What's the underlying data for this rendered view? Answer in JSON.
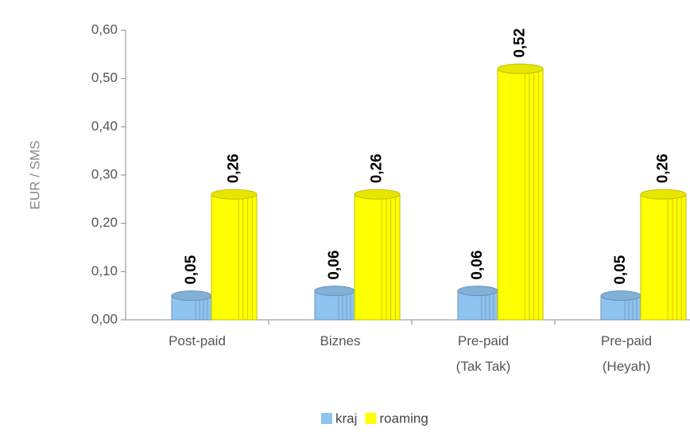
{
  "chart_data": {
    "type": "bar",
    "ylabel": "EUR / SMS",
    "categories": [
      "Post-paid",
      "Biznes",
      "Pre-paid\n(Tak Tak)",
      "Pre-paid\n(Heyah)"
    ],
    "series": [
      {
        "name": "kraj",
        "color": "#8fc3f0",
        "values": [
          0.05,
          0.06,
          0.06,
          0.05
        ],
        "value_labels": [
          "0,05",
          "0,06",
          "0,06",
          "0,05"
        ]
      },
      {
        "name": "roaming",
        "color": "#ffff00",
        "values": [
          0.26,
          0.26,
          0.52,
          0.26
        ],
        "value_labels": [
          "0,26",
          "0,26",
          "0,52",
          "0,26"
        ]
      }
    ],
    "ylim": [
      0,
      0.6
    ],
    "yticks": [
      {
        "value": 0,
        "label": "0,00"
      },
      {
        "value": 0.1,
        "label": "0,10"
      },
      {
        "value": 0.2,
        "label": "0,20"
      },
      {
        "value": 0.3,
        "label": "0,30"
      },
      {
        "value": 0.4,
        "label": "0,40"
      },
      {
        "value": 0.5,
        "label": "0,50"
      },
      {
        "value": 0.6,
        "label": "0,60"
      }
    ],
    "legend": "bottom"
  }
}
